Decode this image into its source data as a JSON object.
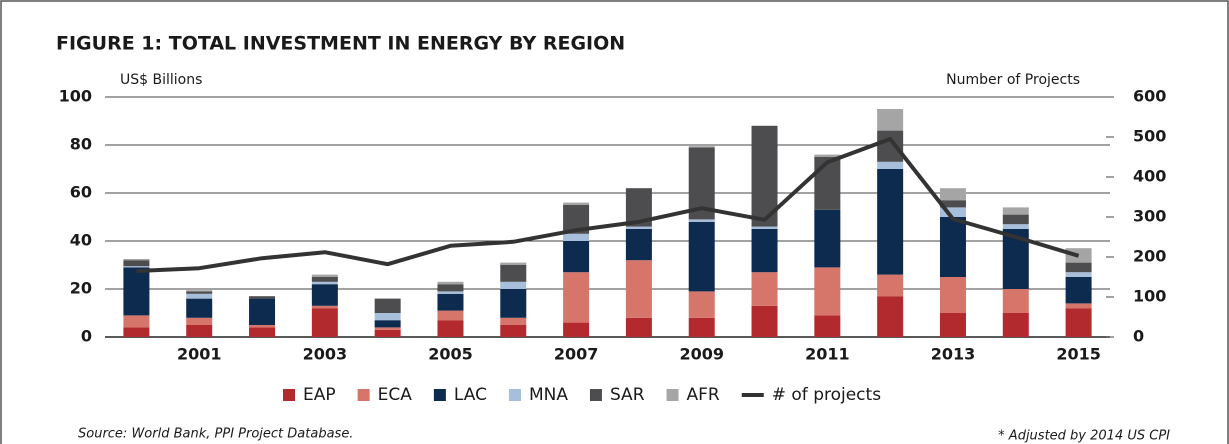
{
  "chart_data": {
    "type": "bar",
    "stacked": true,
    "title": "FIGURE 1: TOTAL INVESTMENT IN ENERGY BY REGION",
    "y_label": "US$ Billions",
    "y2_label": "Number of Projects",
    "source": "Source: World Bank, PPI Project Database.",
    "note": "* Adjusted by 2014 US CPI",
    "categories": [
      null,
      "2001",
      null,
      "2003",
      null,
      "2005",
      null,
      "2007",
      null,
      "2009",
      null,
      "2011",
      null,
      "2013",
      null,
      "2015"
    ],
    "ylim": [
      0,
      100
    ],
    "yticks": [
      0,
      20,
      40,
      60,
      80,
      100
    ],
    "y2lim": [
      0,
      600
    ],
    "y2ticks": [
      0,
      100,
      200,
      300,
      400,
      500,
      600
    ],
    "grid": true,
    "legend": "bottom",
    "series": [
      {
        "name": "EAP",
        "color": "#b22a2e",
        "values": [
          4,
          5,
          4,
          12,
          3,
          7,
          5,
          6,
          8,
          8,
          13,
          9,
          17,
          10,
          10,
          12
        ]
      },
      {
        "name": "ECA",
        "color": "#d6756a",
        "values": [
          5,
          3,
          1,
          1,
          1,
          4,
          3,
          21,
          24,
          11,
          14,
          20,
          9,
          15,
          10,
          2
        ]
      },
      {
        "name": "LAC",
        "color": "#0d2a4f",
        "values": [
          20,
          8,
          11,
          9,
          3,
          7,
          12,
          13,
          13,
          29,
          18,
          24,
          44,
          25,
          25,
          11
        ]
      },
      {
        "name": "MNA",
        "color": "#a8bfdc",
        "values": [
          0.5,
          2,
          0,
          1,
          3,
          1,
          3,
          3,
          1,
          1,
          1,
          0,
          3,
          4,
          2,
          2
        ]
      },
      {
        "name": "SAR",
        "color": "#4d4d4f",
        "values": [
          2.5,
          1,
          1,
          2,
          6,
          3,
          7,
          12,
          16,
          30,
          42,
          22,
          13,
          3,
          4,
          4
        ]
      },
      {
        "name": "AFR",
        "color": "#a5a5a5",
        "values": [
          0.5,
          0.5,
          0,
          1,
          0,
          1,
          1,
          1,
          0,
          0.5,
          0,
          1,
          9,
          5,
          3,
          6
        ]
      },
      {
        "name": "# of projects",
        "type": "line",
        "axis": "y2",
        "color": "#333333",
        "values": [
          165,
          172,
          197,
          212,
          182,
          228,
          238,
          267,
          288,
          322,
          293,
          437,
          495,
          295,
          250,
          203
        ]
      }
    ]
  }
}
